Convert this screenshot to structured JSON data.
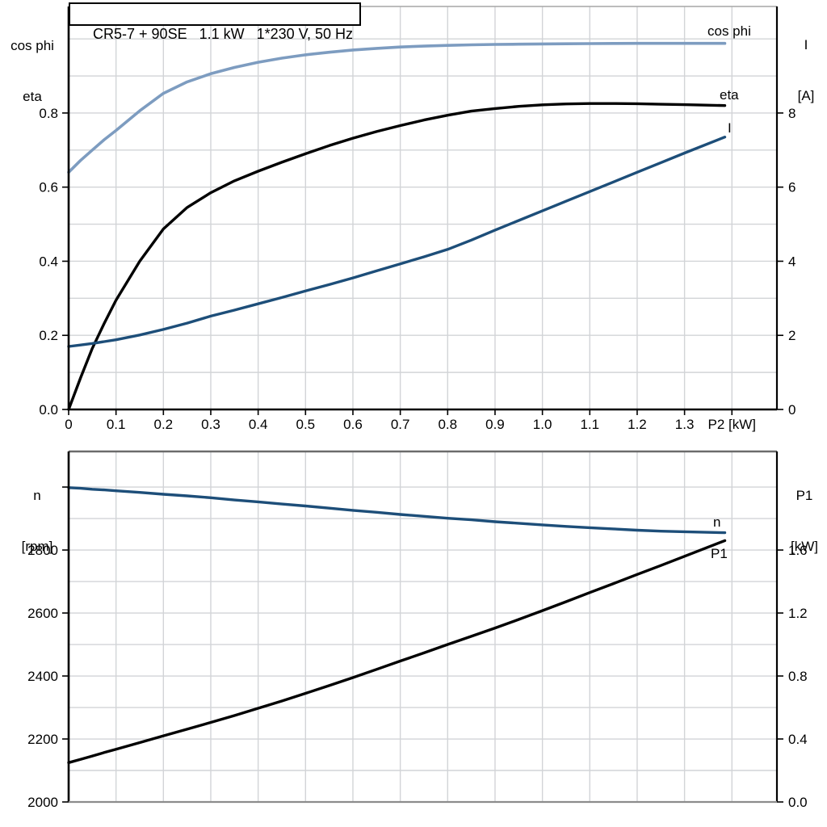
{
  "title": "CR5-7 + 90SE   1.1 kW   1*230 V, 50 Hz",
  "colors": {
    "background": "#FFFFFF",
    "text": "#000000",
    "axis_black": "#000000",
    "grid": "#D2D4D7",
    "panel_top_border_light_gray": "#A6A6A6",
    "panel_border_dark_gray": "#6B6B6B",
    "panel_border_gray": "#8C8C8C",
    "light_blue_curve": "#7D9CC0",
    "dark_blue_curve": "#1D4E79",
    "black_curve": "#000000"
  },
  "axes_corner_labels": {
    "top_left_line1": "cos phi",
    "top_left_line2": "eta",
    "top_right_line1": "I",
    "top_right_line2": "[A]",
    "bottom_left_line1": "n",
    "bottom_left_line2": "[rpm]",
    "bottom_right_line1": "P1",
    "bottom_right_line2": "[kW]"
  },
  "chart_data": [
    {
      "id": "top",
      "type": "line",
      "title": "CR5-7 + 90SE   1.1 kW   1*230 V, 50 Hz",
      "x_axis": {
        "title": "P2 [kW]",
        "range": [
          0,
          1.495
        ],
        "grid_values": [
          0.1,
          0.2,
          0.3,
          0.4,
          0.5,
          0.6,
          0.7,
          0.8,
          0.9,
          1.0,
          1.1,
          1.2,
          1.3,
          1.4
        ],
        "tick_values": [
          0,
          0.1,
          0.2,
          0.3,
          0.4,
          0.5,
          0.6,
          0.7,
          0.8,
          0.9,
          1.0,
          1.1,
          1.2,
          1.3,
          1.4
        ],
        "tick_labels": [
          "0",
          "0.1",
          "0.2",
          "0.3",
          "0.4",
          "0.5",
          "0.6",
          "0.7",
          "0.8",
          "0.9",
          "1.0",
          "1.1",
          "1.2",
          "1.3",
          ""
        ]
      },
      "left_axis": {
        "range": [
          0,
          1.0875
        ],
        "grid_values": [
          0.1,
          0.2,
          0.3,
          0.4,
          0.5,
          0.6,
          0.7,
          0.8,
          0.9,
          1.0
        ],
        "tick_values": [
          0,
          0.2,
          0.4,
          0.6,
          0.8
        ],
        "tick_labels": [
          "0.0",
          "0.2",
          "0.4",
          "0.6",
          "0.8"
        ]
      },
      "right_axis": {
        "range": [
          0,
          10.875
        ],
        "grid_values": [],
        "tick_values": [
          0,
          2,
          4,
          6,
          8
        ],
        "tick_labels": [
          "0",
          "2",
          "4",
          "6",
          "8"
        ]
      },
      "x_values": [
        0,
        0.025,
        0.05,
        0.075,
        0.1,
        0.15,
        0.2,
        0.25,
        0.3,
        0.35,
        0.4,
        0.45,
        0.5,
        0.55,
        0.6,
        0.65,
        0.7,
        0.75,
        0.8,
        0.85,
        0.9,
        0.95,
        1.0,
        1.05,
        1.1,
        1.15,
        1.2,
        1.25,
        1.3,
        1.385
      ],
      "series": [
        {
          "name": "cos phi",
          "label": "cos phi",
          "axis": "left",
          "color_key": "light_blue_curve",
          "stroke_width": 3.6,
          "values": [
            0.64,
            0.672,
            0.7,
            0.728,
            0.753,
            0.806,
            0.853,
            0.884,
            0.906,
            0.923,
            0.937,
            0.948,
            0.957,
            0.964,
            0.97,
            0.9745,
            0.978,
            0.9805,
            0.9825,
            0.984,
            0.985,
            0.9857,
            0.9863,
            0.9868,
            0.9872,
            0.9876,
            0.988,
            0.988,
            0.988,
            0.988
          ]
        },
        {
          "name": "eta",
          "label": "eta",
          "axis": "left",
          "color_key": "black_curve",
          "stroke_width": 3.4,
          "values": [
            0,
            0.085,
            0.165,
            0.232,
            0.295,
            0.4,
            0.487,
            0.545,
            0.585,
            0.617,
            0.643,
            0.667,
            0.69,
            0.712,
            0.732,
            0.75,
            0.766,
            0.781,
            0.794,
            0.805,
            0.812,
            0.818,
            0.822,
            0.8245,
            0.8255,
            0.8255,
            0.825,
            0.8235,
            0.8225,
            0.82
          ]
        },
        {
          "name": "I",
          "label": "I",
          "axis": "right",
          "color_key": "dark_blue_curve",
          "stroke_width": 3.4,
          "values": [
            1.7,
            1.74,
            1.78,
            1.83,
            1.88,
            2.01,
            2.16,
            2.33,
            2.52,
            2.68,
            2.85,
            3.02,
            3.2,
            3.37,
            3.55,
            3.74,
            3.93,
            4.12,
            4.32,
            4.57,
            4.84,
            5.1,
            5.36,
            5.62,
            5.88,
            6.14,
            6.4,
            6.66,
            6.92,
            7.35
          ]
        }
      ]
    },
    {
      "id": "bottom",
      "type": "line",
      "title": "",
      "x_axis": {
        "title": "",
        "range": [
          0,
          1.495
        ],
        "grid_values": [
          0.1,
          0.2,
          0.3,
          0.4,
          0.5,
          0.6,
          0.7,
          0.8,
          0.9,
          1.0,
          1.1,
          1.2,
          1.3,
          1.4
        ],
        "tick_values": [],
        "tick_labels": []
      },
      "left_axis": {
        "range": [
          2000,
          3113
        ],
        "grid_values": [
          2100,
          2200,
          2300,
          2400,
          2500,
          2600,
          2700,
          2800,
          2900,
          3000
        ],
        "tick_values": [
          2000,
          2200,
          2400,
          2600,
          2800,
          3000
        ],
        "tick_labels": [
          "2000",
          "2200",
          "2400",
          "2600",
          "2800",
          ""
        ]
      },
      "right_axis": {
        "range": [
          0,
          2.226
        ],
        "grid_values": [],
        "tick_values": [
          0,
          0.4,
          0.8,
          1.2,
          1.6
        ],
        "tick_labels": [
          "0.0",
          "0.4",
          "0.8",
          "1.2",
          "1.6"
        ]
      },
      "x_values": [
        0,
        0.025,
        0.05,
        0.075,
        0.1,
        0.15,
        0.2,
        0.25,
        0.3,
        0.35,
        0.4,
        0.45,
        0.5,
        0.55,
        0.6,
        0.65,
        0.7,
        0.75,
        0.8,
        0.85,
        0.9,
        0.95,
        1.0,
        1.05,
        1.1,
        1.15,
        1.2,
        1.25,
        1.3,
        1.385
      ],
      "series": [
        {
          "name": "n",
          "label": "n",
          "axis": "left",
          "color_key": "dark_blue_curve",
          "stroke_width": 3.4,
          "values": [
            2998,
            2996,
            2993,
            2991,
            2988,
            2983,
            2977,
            2972,
            2966,
            2959,
            2953,
            2946,
            2940,
            2933,
            2926,
            2920,
            2913,
            2907,
            2901,
            2896,
            2890,
            2885,
            2880,
            2875,
            2871,
            2867,
            2863,
            2860,
            2858,
            2855
          ]
        },
        {
          "name": "P1",
          "label": "P1",
          "axis": "right",
          "color_key": "black_curve",
          "stroke_width": 3.4,
          "values": [
            0.25,
            0.271,
            0.292,
            0.314,
            0.335,
            0.377,
            0.42,
            0.462,
            0.505,
            0.549,
            0.595,
            0.641,
            0.69,
            0.739,
            0.79,
            0.842,
            0.895,
            0.947,
            1.0,
            1.052,
            1.105,
            1.159,
            1.215,
            1.272,
            1.33,
            1.387,
            1.445,
            1.502,
            1.56,
            1.66
          ]
        }
      ]
    }
  ]
}
